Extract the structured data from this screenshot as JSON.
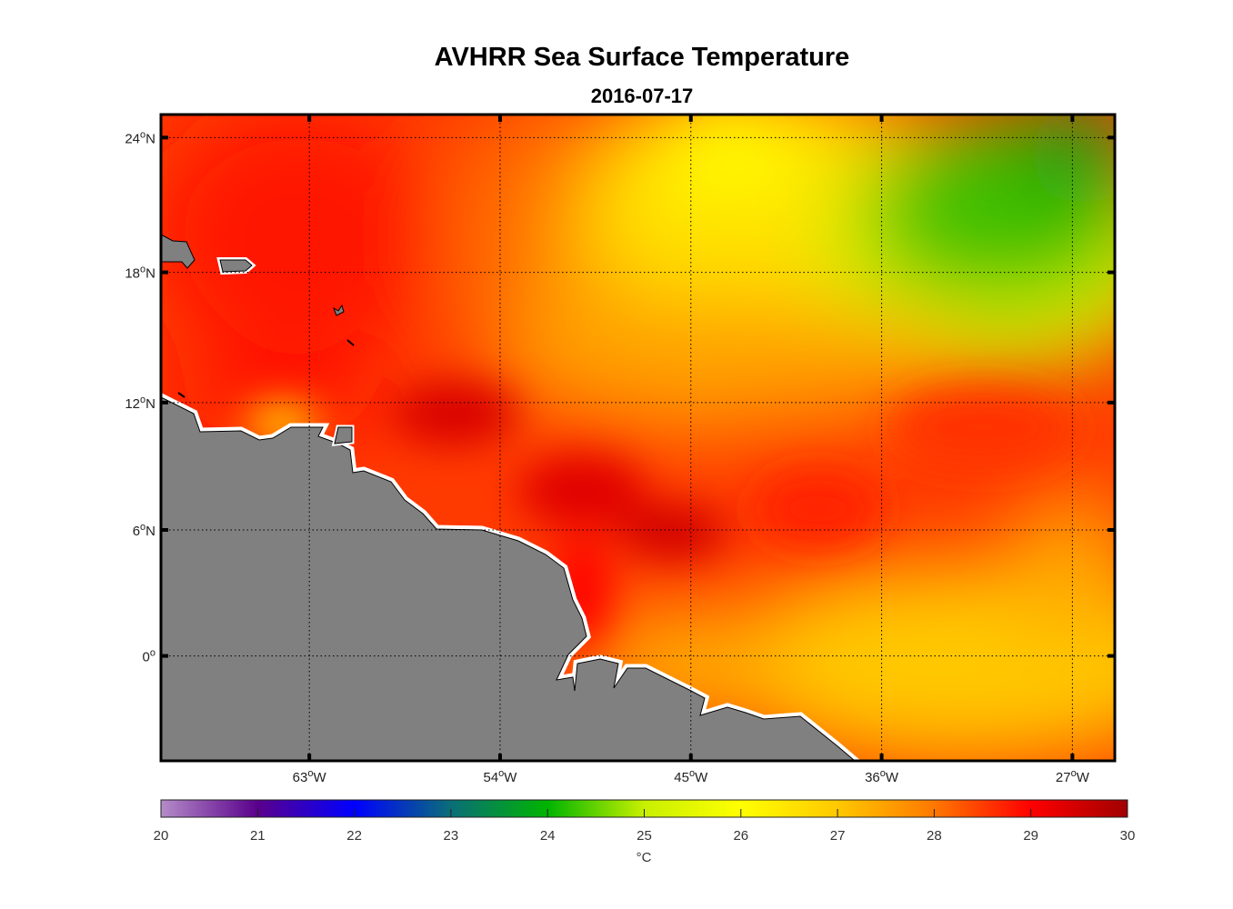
{
  "header": {
    "title": "AVHRR Sea Surface Temperature",
    "subtitle": "2016-07-17"
  },
  "degree_symbol": "o",
  "chart_data": {
    "type": "heatmap",
    "title": "AVHRR Sea Surface Temperature",
    "subtitle": "2016-07-17",
    "lon_range": [
      -70,
      -25
    ],
    "lat_range": [
      -5,
      25
    ],
    "grid": true,
    "x_ticks": [
      {
        "value": "63",
        "hemi": "W"
      },
      {
        "value": "54",
        "hemi": "W"
      },
      {
        "value": "45",
        "hemi": "W"
      },
      {
        "value": "36",
        "hemi": "W"
      },
      {
        "value": "27",
        "hemi": "W"
      }
    ],
    "y_ticks": [
      {
        "value": "24",
        "hemi": "N"
      },
      {
        "value": "18",
        "hemi": "N"
      },
      {
        "value": "12",
        "hemi": "N"
      },
      {
        "value": "6",
        "hemi": "N"
      },
      {
        "value": "0",
        "hemi": ""
      }
    ],
    "colorbar": {
      "min": 20,
      "max": 30,
      "ticks": [
        "20",
        "21",
        "22",
        "23",
        "24",
        "25",
        "26",
        "27",
        "28",
        "29",
        "30"
      ],
      "label": "°C",
      "stops": [
        "#b48cc8",
        "#5a008c",
        "#0000ff",
        "#0a6e78",
        "#00b400",
        "#c8f000",
        "#ffff00",
        "#ffc800",
        "#ff7800",
        "#ff0000",
        "#a00000"
      ]
    },
    "land_color": "#808080"
  }
}
